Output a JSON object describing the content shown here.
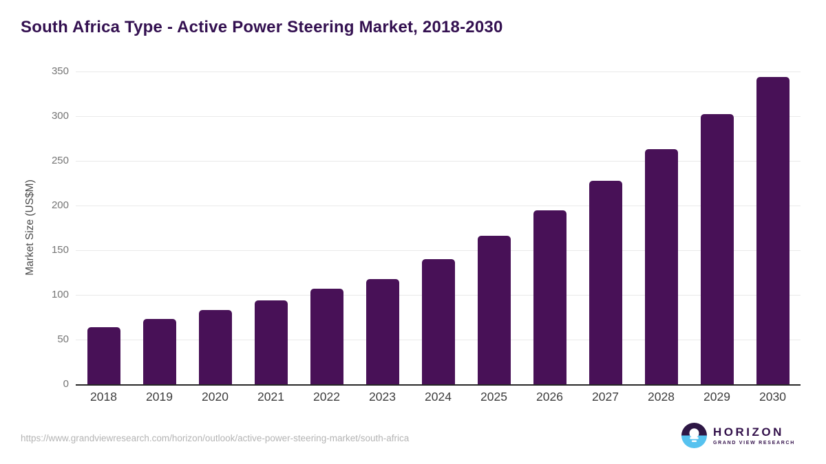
{
  "title": "South Africa Type - Active Power Steering Market, 2018-2030",
  "chart_data": {
    "type": "bar",
    "title": "South Africa Type - Active Power Steering Market, 2018-2030",
    "categories": [
      "2018",
      "2019",
      "2020",
      "2021",
      "2022",
      "2023",
      "2024",
      "2025",
      "2026",
      "2027",
      "2028",
      "2029",
      "2030"
    ],
    "values": [
      64,
      73,
      83,
      94,
      107,
      118,
      140,
      166,
      195,
      228,
      263,
      302,
      344
    ],
    "xlabel": "",
    "ylabel": "Market Size (US$M)",
    "ylim": [
      0,
      350
    ],
    "yticks": [
      0,
      50,
      100,
      150,
      200,
      250,
      300,
      350
    ],
    "grid": "horizontal-only",
    "legend": "none",
    "bar_color": "#481157"
  },
  "colors": {
    "bar": "#481157",
    "title_text": "#331050",
    "gridline": "#e9e9e9",
    "axis_line": "#262626",
    "tick_text": "#757575",
    "xlabel_text": "#3c3c3c",
    "url_text": "#b4b4b4",
    "logo_purple": "#2e1745",
    "logo_blue": "#56c2ef"
  },
  "footer": {
    "source_url": "https://www.grandviewresearch.com/horizon/outlook/active-power-steering-market/south-africa",
    "logo": {
      "title": "HORIZON",
      "subtitle": "GRAND VIEW RESEARCH"
    }
  }
}
